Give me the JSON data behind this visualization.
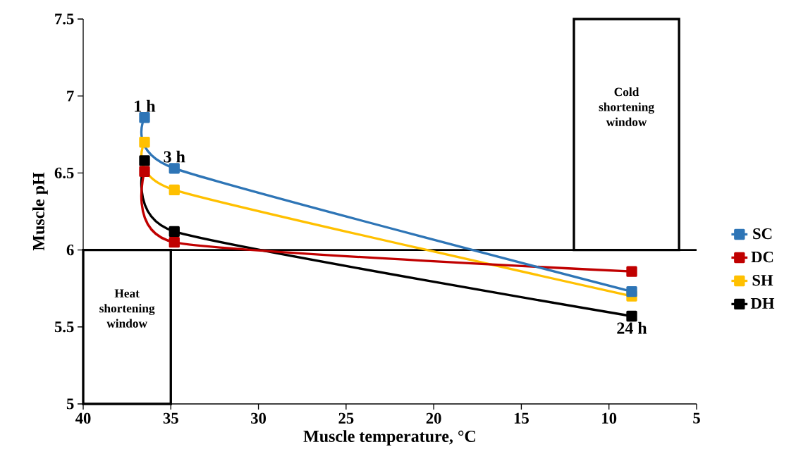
{
  "chart_data": {
    "type": "line",
    "xlabel": "Muscle temperature, °C",
    "ylabel": "Muscle pH",
    "xlim": [
      40,
      5
    ],
    "xticks": [
      40,
      35,
      30,
      25,
      20,
      15,
      10,
      5
    ],
    "ylim": [
      5,
      7.5
    ],
    "yticks": [
      5,
      5.5,
      6,
      6.5,
      7,
      7.5
    ],
    "x": [
      36.5,
      34.8,
      8.7
    ],
    "series": [
      {
        "name": "SC",
        "color": "#2e75b6",
        "values": [
          6.86,
          6.53,
          5.73
        ]
      },
      {
        "name": "DC",
        "color": "#c00000",
        "values": [
          6.51,
          6.05,
          5.86
        ]
      },
      {
        "name": "SH",
        "color": "#ffc000",
        "values": [
          6.7,
          6.39,
          5.7
        ]
      },
      {
        "name": "DH",
        "color": "#000000",
        "values": [
          6.58,
          6.12,
          5.57
        ]
      }
    ],
    "marker": "square",
    "legend": "right",
    "grid": false,
    "ref_lines": [
      {
        "axis": "y",
        "value": 6,
        "color": "#000000"
      }
    ],
    "bands": [
      {
        "axis": "x",
        "from": 40,
        "to": 35,
        "label": "Heat shortening window"
      },
      {
        "axis": "x",
        "from": 12,
        "to": 6,
        "label": "Cold shortening window"
      }
    ],
    "annotations": [
      {
        "text": "1 h",
        "x": 36.5,
        "y": 6.86
      },
      {
        "text": "3 h",
        "x": 34.8,
        "y": 6.53
      },
      {
        "text": "24 h",
        "x": 8.7,
        "y": 5.57
      }
    ]
  }
}
